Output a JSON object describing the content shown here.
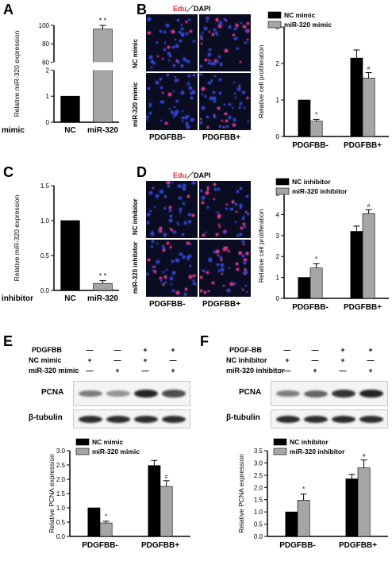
{
  "panels": {
    "A": {
      "letter": "A",
      "row_label": "mimic"
    },
    "B": {
      "letter": "B",
      "stain_title_red": "Edu",
      "stain_title_rest": "／DAPI",
      "row_labels": [
        "NC mimic",
        "miR-320 mimic"
      ],
      "col_labels": [
        "PDGFBB-",
        "PDGFBB+"
      ]
    },
    "C": {
      "letter": "C",
      "row_label": "inhibitor"
    },
    "D": {
      "letter": "D",
      "stain_title_red": "Edu",
      "stain_title_rest": "／DAPI",
      "row_labels": [
        "NC inhibitor",
        "miR-320 inhibitor"
      ],
      "col_labels": [
        "PDGFBB-",
        "PDGFBB+"
      ]
    },
    "E": {
      "letter": "E",
      "cond_rows": [
        {
          "label": "PDGFBB",
          "marks": [
            "—",
            "—",
            "+",
            "+"
          ]
        },
        {
          "label": "NC mimic",
          "marks": [
            "+",
            "—",
            "+",
            "—"
          ]
        },
        {
          "label": "miR-320 mimic",
          "marks": [
            "—",
            "+",
            "—",
            "+"
          ]
        }
      ],
      "blots": [
        "PCNA",
        "β-tubulin"
      ]
    },
    "F": {
      "letter": "F",
      "cond_rows": [
        {
          "label": "PDGF-BB",
          "marks": [
            "—",
            "—",
            "+",
            "+"
          ]
        },
        {
          "label": "NC inhibitor",
          "marks": [
            "+",
            "—",
            "+",
            "—"
          ]
        },
        {
          "label": "miR-320 inhibitor",
          "marks": [
            "—",
            "+",
            "—",
            "+"
          ]
        }
      ],
      "blots": [
        "PCNA",
        "β-tubulin"
      ]
    }
  },
  "colors": {
    "black_bar": "#000000",
    "gray_bar": "#a6a6a6",
    "micro_bg": "#0a0d22",
    "nuclei": "#2f3fc8",
    "edu": "#e0288c"
  },
  "chart_data": [
    {
      "id": "A",
      "type": "bar",
      "broken_axis": true,
      "categories": [
        "NC",
        "miR-320"
      ],
      "values": [
        1,
        96
      ],
      "errors": [
        0,
        4
      ],
      "colors": [
        "#000000",
        "#a6a6a6"
      ],
      "annotations": [
        "",
        "* *"
      ],
      "ylabel": "Relative miR-320  expression",
      "yticks_lower": [
        0,
        1,
        2
      ],
      "yticks_upper": [
        60,
        80,
        100
      ],
      "ylim_lower": [
        0,
        2
      ],
      "ylim_upper": [
        60,
        100
      ]
    },
    {
      "id": "B",
      "type": "bar",
      "categories": [
        "PDGFBB-",
        "PDGFBB+"
      ],
      "series": [
        {
          "name": "NC mimic",
          "values": [
            1.0,
            2.15
          ],
          "errors": [
            0,
            0.22
          ],
          "annotations": [
            "",
            ""
          ]
        },
        {
          "name": "miR-320 mimic",
          "values": [
            0.42,
            1.6
          ],
          "errors": [
            0.05,
            0.15
          ],
          "annotations": [
            "*",
            "#"
          ]
        }
      ],
      "ylabel": "Relative cell proliferation",
      "ylim": [
        0,
        3
      ],
      "yticks": [
        0,
        1,
        2,
        3
      ],
      "legend": "top-left"
    },
    {
      "id": "C",
      "type": "bar",
      "categories": [
        "NC",
        "miR-320"
      ],
      "values": [
        1.0,
        0.1
      ],
      "errors": [
        0,
        0.04
      ],
      "colors": [
        "#000000",
        "#a6a6a6"
      ],
      "annotations": [
        "",
        "* *"
      ],
      "ylabel": "Relative miR-320  expression",
      "ylim": [
        0,
        1.5
      ],
      "yticks": [
        0.0,
        0.5,
        1.0,
        1.5
      ]
    },
    {
      "id": "D",
      "type": "bar",
      "categories": [
        "PDGFBB-",
        "PDGFBB+"
      ],
      "series": [
        {
          "name": "NC inhibitor",
          "values": [
            1.0,
            3.2
          ],
          "errors": [
            0,
            0.25
          ],
          "annotations": [
            "",
            ""
          ]
        },
        {
          "name": "miR-320 inhibitor",
          "values": [
            1.45,
            4.05
          ],
          "errors": [
            0.2,
            0.18
          ],
          "annotations": [
            "*",
            "#"
          ]
        }
      ],
      "ylabel": "Relative cell proliferation",
      "ylim": [
        0,
        5
      ],
      "yticks": [
        0,
        1,
        2,
        3,
        4,
        5
      ],
      "legend": "top-left"
    },
    {
      "id": "E",
      "type": "bar",
      "categories": [
        "PDGFBB-",
        "PDGFBB+"
      ],
      "series": [
        {
          "name": "NC mimic",
          "values": [
            1.0,
            2.48
          ],
          "errors": [
            0,
            0.18
          ],
          "annotations": [
            "",
            ""
          ]
        },
        {
          "name": "miR-320 mimic",
          "values": [
            0.47,
            1.75
          ],
          "errors": [
            0.06,
            0.2
          ],
          "annotations": [
            "*",
            "#"
          ]
        }
      ],
      "ylabel": "Relative PCNA expression",
      "ylim": [
        0,
        3.0
      ],
      "yticks": [
        0.0,
        0.5,
        1.0,
        1.5,
        2.0,
        2.5,
        3.0
      ],
      "legend": "top-left"
    },
    {
      "id": "F",
      "type": "bar",
      "categories": [
        "PDGFBB-",
        "PDGFBB+"
      ],
      "series": [
        {
          "name": "NC inhibitor",
          "values": [
            1.0,
            2.35
          ],
          "errors": [
            0,
            0.18
          ],
          "annotations": [
            "",
            ""
          ]
        },
        {
          "name": "miR-320 inhibitor",
          "values": [
            1.48,
            2.8
          ],
          "errors": [
            0.25,
            0.32
          ],
          "annotations": [
            "*",
            "#"
          ]
        }
      ],
      "ylabel": "Relative PCNA expression",
      "ylim": [
        0,
        3.5
      ],
      "yticks": [
        0.0,
        0.5,
        1.0,
        1.5,
        2.0,
        2.5,
        3.0,
        3.5
      ],
      "legend": "top-left"
    }
  ]
}
